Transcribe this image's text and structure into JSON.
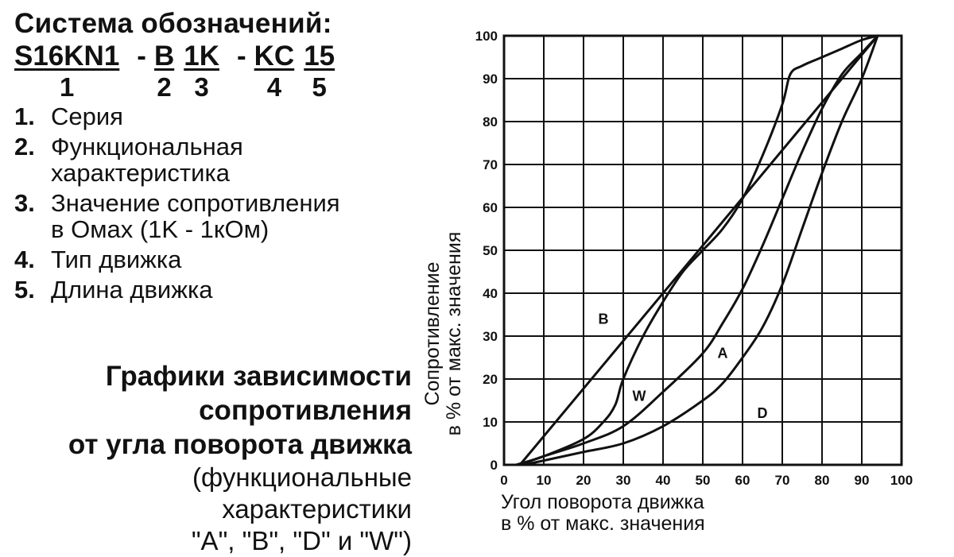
{
  "notation": {
    "title": "Система обозначений:",
    "code_parts": [
      {
        "text": "S16KN1",
        "num": "1"
      },
      {
        "sep": "-"
      },
      {
        "text": "B",
        "num": "2"
      },
      {
        "text": "1K",
        "num": "3"
      },
      {
        "sep": "-"
      },
      {
        "text": "KC",
        "num": "4"
      },
      {
        "text": "15",
        "num": "5"
      }
    ],
    "items": [
      {
        "num": "1.",
        "text": "Серия"
      },
      {
        "num": "2.",
        "text": "Функциональная\nхарактеристика"
      },
      {
        "num": "3.",
        "text": "Значение сопротивления\nв Омах (1K - 1кОм)"
      },
      {
        "num": "4.",
        "text": "Тип движка"
      },
      {
        "num": "5.",
        "text": "Длина движка"
      }
    ]
  },
  "graphs_title": {
    "bold": "Графики зависимости\nсопротивления\nот угла поворота движка",
    "normal": "(функциональные\nхарактеристики\n\"A\", \"B\", \"D\" и \"W\")"
  },
  "chart_data": {
    "type": "line",
    "xlabel": "Угол поворота движка\nв % от макс. значения",
    "ylabel": "Сопротивление\nв % от макс. значения",
    "xlim": [
      0,
      100
    ],
    "ylim": [
      0,
      100
    ],
    "xticks": [
      "0",
      "10",
      "20",
      "30",
      "40",
      "50",
      "60",
      "70",
      "80",
      "90",
      "100"
    ],
    "yticks": [
      "0",
      "10",
      "20",
      "30",
      "40",
      "50",
      "60",
      "70",
      "80",
      "90",
      "100"
    ],
    "grid": true,
    "series": [
      {
        "name": "B",
        "x": [
          4,
          94
        ],
        "y": [
          0,
          100
        ]
      },
      {
        "name": "A",
        "x": [
          5,
          10,
          20,
          30,
          40,
          50,
          55,
          60,
          65,
          70,
          75,
          80,
          85,
          90,
          94
        ],
        "y": [
          0,
          1,
          3,
          5,
          9,
          15,
          19,
          25,
          32,
          42,
          55,
          68,
          80,
          90,
          100
        ]
      },
      {
        "name": "D",
        "x": [
          4,
          10,
          20,
          30,
          40,
          50,
          55,
          60,
          65,
          70,
          75,
          80,
          85,
          90,
          94
        ],
        "y": [
          0,
          2,
          5,
          9,
          17,
          26,
          33,
          41,
          51,
          62,
          73,
          83,
          91,
          96,
          100
        ]
      },
      {
        "name": "W",
        "x": [
          3,
          10,
          20,
          25,
          28,
          30,
          35,
          40,
          45,
          50,
          55,
          60,
          65,
          70,
          72,
          75,
          80,
          85,
          90,
          94
        ],
        "y": [
          0,
          2,
          6,
          10,
          14,
          20,
          30,
          38,
          45,
          50,
          55,
          62,
          72,
          84,
          91,
          93,
          95,
          97,
          99,
          100
        ]
      }
    ],
    "curve_labels": [
      {
        "text": "B",
        "x": 25,
        "y": 34
      },
      {
        "text": "A",
        "x": 55,
        "y": 26
      },
      {
        "text": "D",
        "x": 65,
        "y": 12
      },
      {
        "text": "W",
        "x": 34,
        "y": 16
      }
    ]
  }
}
